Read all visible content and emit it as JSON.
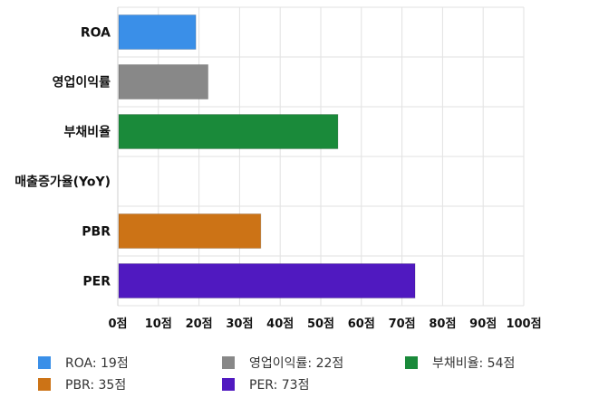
{
  "chart_data": {
    "type": "bar",
    "orientation": "horizontal",
    "categories": [
      "ROA",
      "영업이익률",
      "부채비율",
      "매출증가율(YoY)",
      "PBR",
      "PER"
    ],
    "values": [
      19,
      22,
      54,
      0,
      35,
      73
    ],
    "xlim": [
      0,
      100
    ],
    "x_ticks": [
      0,
      10,
      20,
      30,
      40,
      50,
      60,
      70,
      80,
      90,
      100
    ],
    "tick_suffix": "점",
    "grid": true,
    "legend_position": "bottom",
    "colors": [
      "#3a8fe8",
      "#888888",
      "#1a8a3a",
      "#ffffff",
      "#cc7316",
      "#5019c0"
    ]
  },
  "legend": [
    {
      "label": "ROA: 19점",
      "color": "#3a8fe8"
    },
    {
      "label": "영업이익률: 22점",
      "color": "#888888"
    },
    {
      "label": "부채비율: 54점",
      "color": "#1a8a3a"
    },
    {
      "label": "PBR: 35점",
      "color": "#cc7316"
    },
    {
      "label": "PER: 73점",
      "color": "#5019c0"
    }
  ]
}
